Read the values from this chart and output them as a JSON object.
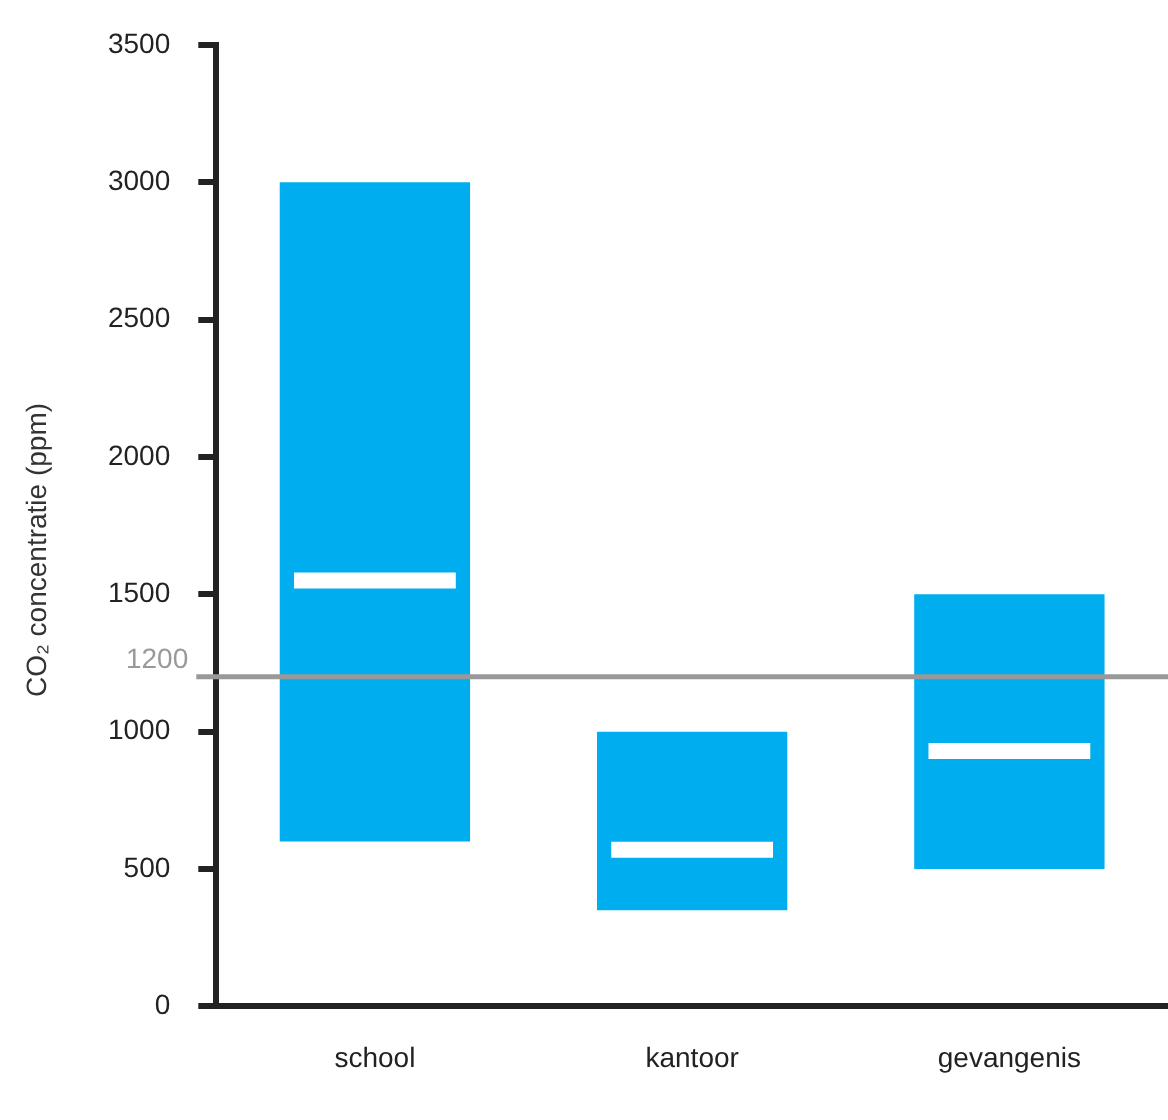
{
  "chart_data": {
    "type": "box",
    "ylabel": "CO₂ concentratie (ppm)",
    "categories": [
      "school",
      "kantoor",
      "gevangenis"
    ],
    "color": "#00aeef",
    "boxes": [
      {
        "low": 600,
        "q1": 600,
        "median": 1550,
        "q3": 3000,
        "high": 3000
      },
      {
        "low": 350,
        "q1": 350,
        "median": 570,
        "q3": 1000,
        "high": 1000
      },
      {
        "low": 500,
        "q1": 500,
        "median": 930,
        "q3": 1500,
        "high": 1500
      }
    ],
    "ylim": [
      0,
      3500
    ],
    "yticks": [
      0,
      500,
      1000,
      1500,
      2000,
      2500,
      3000,
      3500
    ],
    "grid": false,
    "legend": false,
    "ref_lines": [
      {
        "axis": "y",
        "value": 1200,
        "label": "1200",
        "color": "#999999"
      }
    ]
  }
}
